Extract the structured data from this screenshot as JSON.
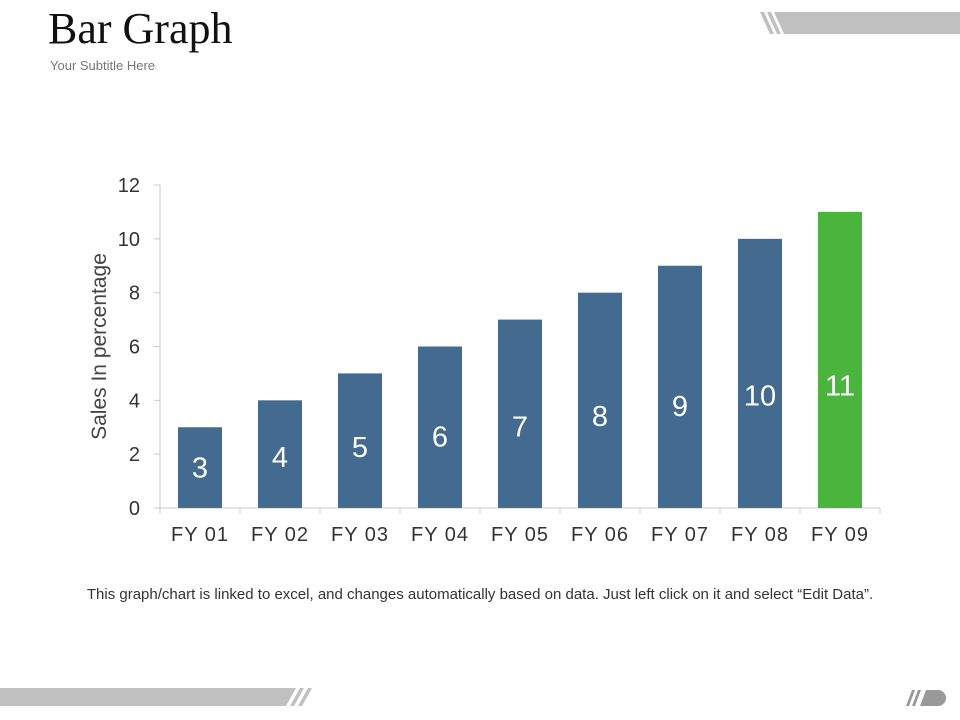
{
  "title": "Bar Graph",
  "subtitle": "Your Subtitle Here",
  "footnote": "This graph/chart is linked to excel, and changes automatically based on data. Just left click on it and select “Edit Data”.",
  "colors": {
    "bar": "#436a8f",
    "highlight": "#4bb43c",
    "axis": "#c9c9c9",
    "label": "#333333",
    "deco_gray": "#c0c0c0"
  },
  "chart_data": {
    "type": "bar",
    "categories": [
      "FY 01",
      "FY 02",
      "FY 03",
      "FY 04",
      "FY 05",
      "FY 06",
      "FY 07",
      "FY 08",
      "FY 09"
    ],
    "values": [
      3,
      4,
      5,
      6,
      7,
      8,
      9,
      10,
      11
    ],
    "highlight_category": "FY 09",
    "ylabel": "Sales In percentage",
    "xlabel": "",
    "ylim": [
      0,
      12
    ],
    "yticks": [
      0,
      2,
      4,
      6,
      8,
      10,
      12
    ],
    "grid": false,
    "legend": "none",
    "data_labels": true
  }
}
